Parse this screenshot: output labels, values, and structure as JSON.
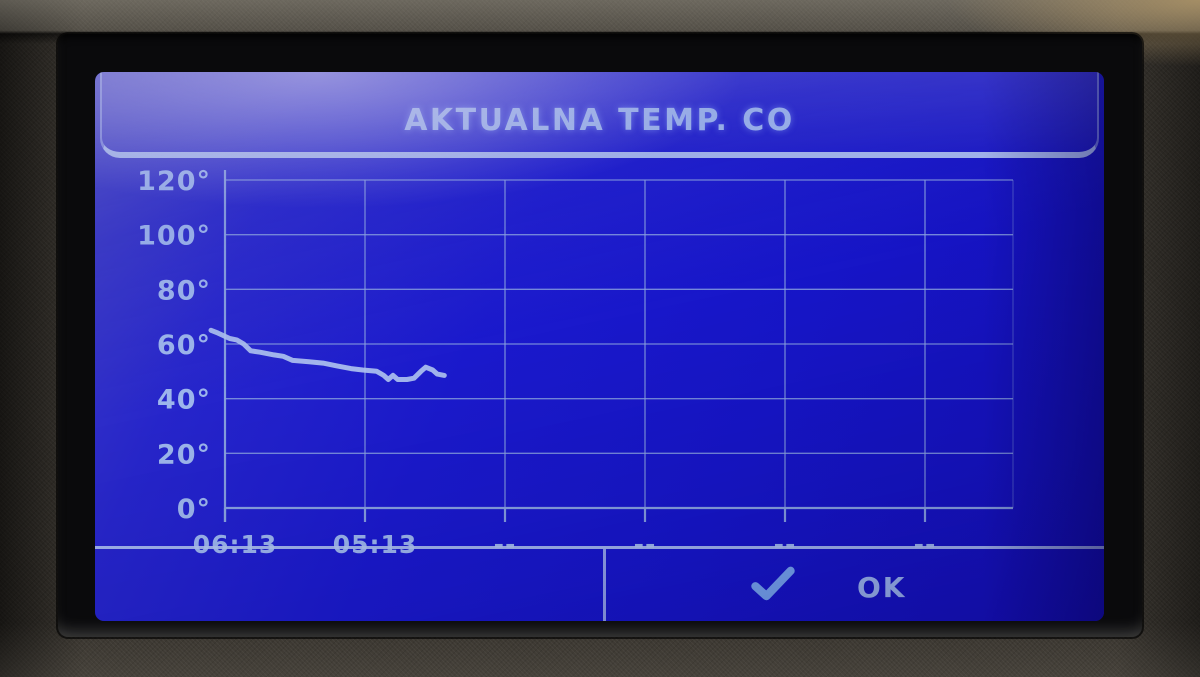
{
  "title_bar": {
    "title": "AKTUALNA TEMP. CO"
  },
  "footer": {
    "ok_label": "OK",
    "confirm_icon": "check"
  },
  "colors": {
    "screen_blue": "#1a18c9",
    "ink": "#9db6ec",
    "grid": "#8ca5e0",
    "series_line": "#aec2f0",
    "check": "#78a6ee"
  },
  "chart_data": {
    "type": "line",
    "title": "AKTUALNA TEMP. CO",
    "y_unit": "°",
    "ylim": [
      0,
      120
    ],
    "y_ticks": [
      120,
      100,
      80,
      60,
      40,
      20,
      0
    ],
    "x_ticks": [
      "06:13",
      "05:13",
      "--",
      "--",
      "--",
      "--"
    ],
    "x_tick_interval_minutes": 60,
    "x_direction": "newest-on-left",
    "grid": true,
    "legend": "none",
    "series": [
      {
        "name": "aktualna temp. CO",
        "points": [
          [
            "06:19",
            65
          ],
          [
            "06:16",
            64
          ],
          [
            "06:11",
            62
          ],
          [
            "06:08",
            61.5
          ],
          [
            "06:05",
            60
          ],
          [
            "06:02",
            57.5
          ],
          [
            "05:58",
            57
          ],
          [
            "05:52",
            56
          ],
          [
            "05:48",
            55.5
          ],
          [
            "05:44",
            54
          ],
          [
            "05:37",
            53.5
          ],
          [
            "05:31",
            53
          ],
          [
            "05:25",
            52
          ],
          [
            "05:19",
            51
          ],
          [
            "05:14",
            50.5
          ],
          [
            "05:08",
            50
          ],
          [
            "05:05",
            48.5
          ],
          [
            "05:03",
            47
          ],
          [
            "05:01",
            48.5
          ],
          [
            "04:59",
            47
          ],
          [
            "04:55",
            47
          ],
          [
            "04:52",
            47.5
          ],
          [
            "04:49",
            50
          ],
          [
            "04:47",
            51.5
          ],
          [
            "04:44",
            50.5
          ],
          [
            "04:42",
            49
          ],
          [
            "04:39",
            48.5
          ]
        ]
      }
    ]
  }
}
